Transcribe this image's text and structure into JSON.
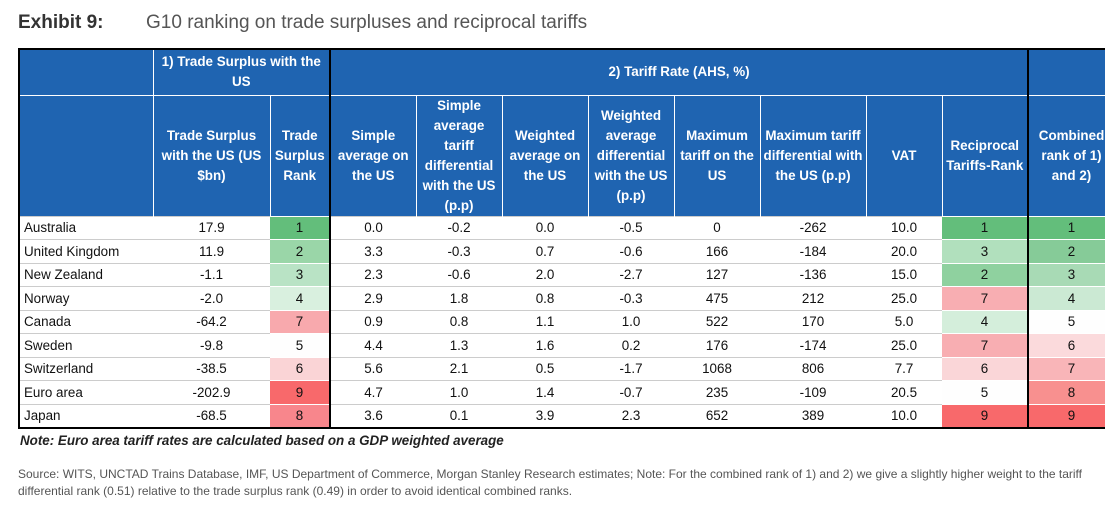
{
  "exhibit_label": "Exhibit 9:",
  "title": "G10 ranking on trade surpluses and reciprocal tariffs",
  "group_headers": {
    "trade": "1) Trade Surplus with the US",
    "tariff": "2) Tariff Rate (AHS, %)"
  },
  "columns": [
    "Trade Surplus with the US (US $bn)",
    "Trade Surplus Rank",
    "Simple average on the US",
    "Simple average tariff differential with the US (p.p)",
    "Weighted average on the US",
    "Weighted average differential with the US (p.p)",
    "Maximum tariff on the US",
    "Maximum tariff differential with the US (p.p)",
    "VAT",
    "Reciprocal Tariffs-Rank",
    "Combined rank of 1) and 2)"
  ],
  "rows": [
    {
      "country": "Australia",
      "surplus": "17.9",
      "surplus_rank": "1",
      "simple": "0.0",
      "simple_diff": "-0.2",
      "weighted": "0.0",
      "weighted_diff": "-0.5",
      "max": "0",
      "max_diff": "-262",
      "vat": "10.0",
      "recip_rank": "1",
      "combined": "1"
    },
    {
      "country": "United Kingdom",
      "surplus": "11.9",
      "surplus_rank": "2",
      "simple": "3.3",
      "simple_diff": "-0.3",
      "weighted": "0.7",
      "weighted_diff": "-0.6",
      "max": "166",
      "max_diff": "-184",
      "vat": "20.0",
      "recip_rank": "3",
      "combined": "2"
    },
    {
      "country": "New Zealand",
      "surplus": "-1.1",
      "surplus_rank": "3",
      "simple": "2.3",
      "simple_diff": "-0.6",
      "weighted": "2.0",
      "weighted_diff": "-2.7",
      "max": "127",
      "max_diff": "-136",
      "vat": "15.0",
      "recip_rank": "2",
      "combined": "3"
    },
    {
      "country": "Norway",
      "surplus": "-2.0",
      "surplus_rank": "4",
      "simple": "2.9",
      "simple_diff": "1.8",
      "weighted": "0.8",
      "weighted_diff": "-0.3",
      "max": "475",
      "max_diff": "212",
      "vat": "25.0",
      "recip_rank": "7",
      "combined": "4"
    },
    {
      "country": "Canada",
      "surplus": "-64.2",
      "surplus_rank": "7",
      "simple": "0.9",
      "simple_diff": "0.8",
      "weighted": "1.1",
      "weighted_diff": "1.0",
      "max": "522",
      "max_diff": "170",
      "vat": "5.0",
      "recip_rank": "4",
      "combined": "5"
    },
    {
      "country": "Sweden",
      "surplus": "-9.8",
      "surplus_rank": "5",
      "simple": "4.4",
      "simple_diff": "1.3",
      "weighted": "1.6",
      "weighted_diff": "0.2",
      "max": "176",
      "max_diff": "-174",
      "vat": "25.0",
      "recip_rank": "7",
      "combined": "6"
    },
    {
      "country": "Switzerland",
      "surplus": "-38.5",
      "surplus_rank": "6",
      "simple": "5.6",
      "simple_diff": "2.1",
      "weighted": "0.5",
      "weighted_diff": "-1.7",
      "max": "1068",
      "max_diff": "806",
      "vat": "7.7",
      "recip_rank": "6",
      "combined": "7"
    },
    {
      "country": "Euro area",
      "surplus": "-202.9",
      "surplus_rank": "9",
      "simple": "4.7",
      "simple_diff": "1.0",
      "weighted": "1.4",
      "weighted_diff": "-0.7",
      "max": "235",
      "max_diff": "-109",
      "vat": "20.5",
      "recip_rank": "5",
      "combined": "8"
    },
    {
      "country": "Japan",
      "surplus": "-68.5",
      "surplus_rank": "8",
      "simple": "3.6",
      "simple_diff": "0.1",
      "weighted": "3.9",
      "weighted_diff": "2.3",
      "max": "652",
      "max_diff": "389",
      "vat": "10.0",
      "recip_rank": "9",
      "combined": "9"
    }
  ],
  "rank_colors": {
    "surplus_rank": [
      "#63be7b",
      "#9ad6a8",
      "#b9e3c5",
      "#d9f0df",
      "#fefefe",
      "#fad4d6",
      "#f8a9ad",
      "#f8868c",
      "#f8696b"
    ],
    "recip_rank": [
      "#63be7b",
      "#8fd19f",
      "#b1e0bd",
      "#d4eedb",
      "#fefefe",
      "#fad6d8",
      "#f8aeb2",
      "#f8696b",
      "#f8696b"
    ],
    "combined": [
      "#63be7b",
      "#86cb98",
      "#a8dab5",
      "#cbe9d3",
      "#fefefe",
      "#fbdadc",
      "#f9b5b8",
      "#f8908f",
      "#f8696b"
    ]
  },
  "note": "Note: Euro area tariff rates are calculated based on a GDP weighted average",
  "source": "Source: WITS, UNCTAD Trains Database, IMF, US Department of Commerce, Morgan Stanley Research estimates; Note: For the combined rank of 1) and 2) we give a slightly higher weight to the tariff differential rank (0.51) relative to the trade surplus rank (0.49) in order to avoid identical combined ranks."
}
